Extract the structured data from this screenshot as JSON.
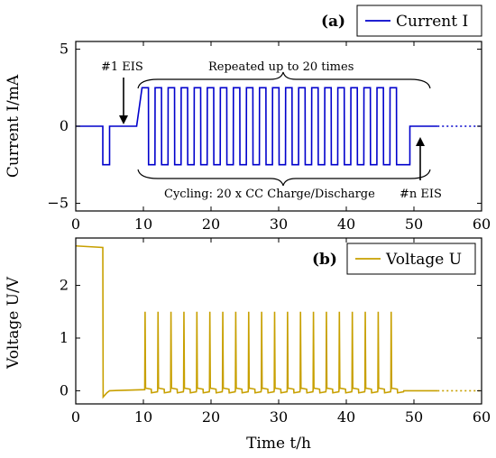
{
  "chart_data": [
    {
      "type": "line",
      "panel_label": "(a)",
      "ylabel": "Current I/mA",
      "xlim": [
        0,
        60
      ],
      "ylim": [
        -5.5,
        5.5
      ],
      "xticks": [
        0,
        10,
        20,
        30,
        40,
        50,
        60
      ],
      "xtick_labels": [
        "0",
        "10",
        "20",
        "30",
        "40",
        "50",
        "60"
      ],
      "yticks": [
        -5,
        0,
        5
      ],
      "ytick_labels": [
        "−5",
        "0",
        "5"
      ],
      "legend": "Current I",
      "legend_position": "top-right",
      "color": "#0000cc",
      "series": [
        {
          "name": "Current I",
          "pre": [
            [
              0,
              0
            ],
            [
              4,
              0
            ],
            [
              4,
              -2.5
            ],
            [
              5,
              -2.5
            ],
            [
              5,
              0
            ],
            [
              9,
              0
            ],
            [
              9.8,
              2.5
            ]
          ],
          "cycles": {
            "start": 9.8,
            "count": 20,
            "period": 2.0,
            "high": 2.5,
            "low": -2.5,
            "end": 48.4
          },
          "post": [
            [
              48.4,
              -2.5
            ],
            [
              49.4,
              -2.5
            ],
            [
              49.4,
              0
            ],
            [
              53.5,
              0
            ]
          ],
          "dotted": [
            [
              53.5,
              0
            ],
            [
              60,
              0
            ]
          ]
        }
      ],
      "annotations": {
        "eis1": "#1 EIS",
        "repeated": "Repeated up to 20 times",
        "cycling": "Cycling: 20 x CC Charge/Discharge",
        "eisn": "#n EIS"
      }
    },
    {
      "type": "line",
      "panel_label": "(b)",
      "xlabel": "Time t/h",
      "ylabel": "Voltage U/V",
      "xlim": [
        0,
        60
      ],
      "ylim": [
        -0.25,
        2.9
      ],
      "xticks": [
        0,
        10,
        20,
        30,
        40,
        50,
        60
      ],
      "xtick_labels": [
        "0",
        "10",
        "20",
        "30",
        "40",
        "50",
        "60"
      ],
      "yticks": [
        0,
        1,
        2
      ],
      "ytick_labels": [
        "0",
        "1",
        "2"
      ],
      "legend": "Voltage U",
      "legend_position": "top-right",
      "color": "#c8a000",
      "series": [
        {
          "name": "Voltage U",
          "pre": [
            [
              0,
              2.75
            ],
            [
              4,
              2.72
            ],
            [
              4.05,
              -0.12
            ],
            [
              4.6,
              -0.04
            ],
            [
              5,
              0.0
            ],
            [
              10.2,
              0.02
            ]
          ],
          "spikes": {
            "start": 10.2,
            "count": 20,
            "period": 2.0,
            "peak": 1.5,
            "base": 0.0,
            "end": 48.5
          },
          "post": [
            [
              48.5,
              0.0
            ],
            [
              53.5,
              0.0
            ]
          ],
          "dotted": [
            [
              53.5,
              0
            ],
            [
              60,
              0
            ]
          ]
        }
      ]
    }
  ]
}
